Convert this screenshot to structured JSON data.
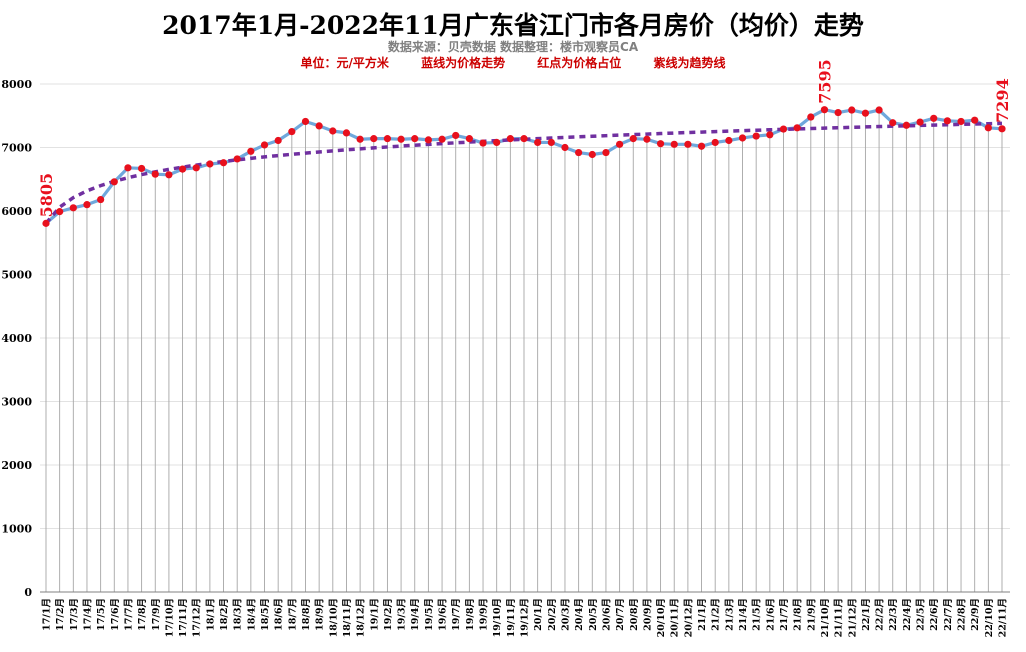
{
  "chart_data": {
    "type": "line",
    "title": "2017年1月-2022年11月广东省江门市各月房价（均价）走势",
    "subtitle": "数据来源：贝壳数据  数据整理：楼市观察员CA",
    "notes": [
      "单位：元/平方米",
      "蓝线为价格走势",
      "红点为价格占位",
      "紫线为趋势线"
    ],
    "ylim": [
      0,
      8000
    ],
    "yticks": [
      "0",
      "1000",
      "2000",
      "3000",
      "4000",
      "5000",
      "6000",
      "7000",
      "8000"
    ],
    "categories": [
      "17/1月",
      "17/2月",
      "17/3月",
      "17/4月",
      "17/5月",
      "17/6月",
      "17/7月",
      "17/8月",
      "17/9月",
      "17/10月",
      "17/11月",
      "17/12月",
      "18/1月",
      "18/2月",
      "18/3月",
      "18/4月",
      "18/5月",
      "18/6月",
      "18/7月",
      "18/8月",
      "18/9月",
      "18/10月",
      "18/11月",
      "18/12月",
      "19/1月",
      "19/2月",
      "19/3月",
      "19/4月",
      "19/5月",
      "19/6月",
      "19/7月",
      "19/8月",
      "19/9月",
      "19/10月",
      "19/11月",
      "19/12月",
      "20/1月",
      "20/2月",
      "20/3月",
      "20/4月",
      "20/5月",
      "20/6月",
      "20/7月",
      "20/8月",
      "20/9月",
      "20/10月",
      "20/11月",
      "20/12月",
      "21/1月",
      "21/2月",
      "21/3月",
      "21/4月",
      "21/5月",
      "21/6月",
      "21/7月",
      "21/8月",
      "21/9月",
      "21/10月",
      "21/11月",
      "21/12月",
      "22/1月",
      "22/2月",
      "22/3月",
      "22/4月",
      "22/5月",
      "22/6月",
      "22/7月",
      "22/8月",
      "22/9月",
      "22/10月",
      "22/11月"
    ],
    "series": [
      {
        "name": "价格",
        "values": [
          5805,
          5990,
          6050,
          6100,
          6180,
          6460,
          6680,
          6670,
          6580,
          6570,
          6660,
          6680,
          6740,
          6760,
          6820,
          6940,
          7040,
          7110,
          7250,
          7410,
          7340,
          7260,
          7230,
          7130,
          7140,
          7140,
          7130,
          7140,
          7120,
          7130,
          7190,
          7140,
          7070,
          7080,
          7140,
          7140,
          7080,
          7080,
          7000,
          6920,
          6890,
          6920,
          7050,
          7140,
          7130,
          7060,
          7050,
          7050,
          7020,
          7080,
          7110,
          7150,
          7180,
          7200,
          7290,
          7310,
          7480,
          7595,
          7550,
          7590,
          7540,
          7590,
          7390,
          7350,
          7400,
          7460,
          7420,
          7410,
          7430,
          7310,
          7294
        ]
      }
    ],
    "trend": {
      "name": "趋势线",
      "start": 5805,
      "end": 7380
    },
    "annotations": [
      {
        "index": 0,
        "text": "5805"
      },
      {
        "index": 57,
        "text": "7595"
      },
      {
        "index": 70,
        "text": "7294"
      }
    ],
    "colors": {
      "line": "#6fa8dc",
      "marker": "#e8101d",
      "trend": "#7030a0",
      "annotation": "#e8101d",
      "grid": "#a6a6a6"
    },
    "grid": true
  }
}
